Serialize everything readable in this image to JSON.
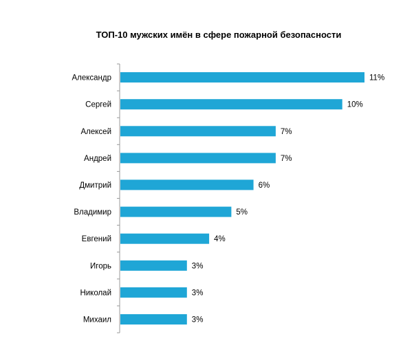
{
  "chart_data": {
    "type": "bar",
    "orientation": "horizontal",
    "title": "ТОП-10 мужских имён в сфере пожарной безопасности",
    "categories": [
      "Александр",
      "Сергей",
      "Алексей",
      "Андрей",
      "Дмитрий",
      "Владимир",
      "Евгений",
      "Игорь",
      "Николай",
      "Михаил"
    ],
    "values": [
      11,
      10,
      7,
      7,
      6,
      5,
      4,
      3,
      3,
      3
    ],
    "value_labels": [
      "11%",
      "10%",
      "7%",
      "7%",
      "6%",
      "5%",
      "4%",
      "3%",
      "3%",
      "3%"
    ],
    "unit": "%",
    "xlim": [
      0,
      11
    ],
    "grid": false,
    "legend": "none",
    "bar_color": "#1fa6d6",
    "axis_color": "#999999"
  }
}
